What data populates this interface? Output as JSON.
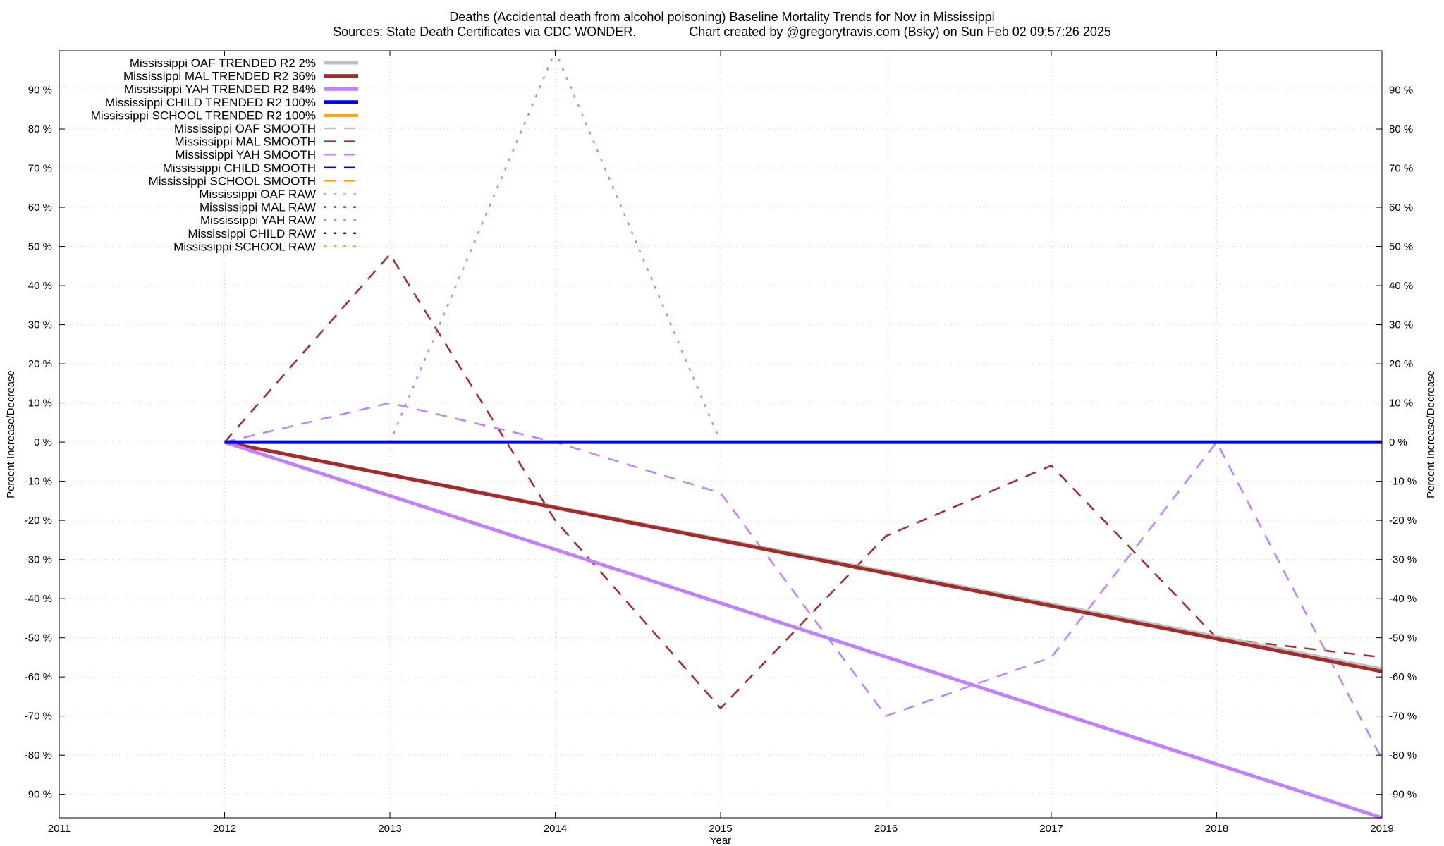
{
  "title": "Deaths (Accidental death from alcohol poisoning)  Baseline Mortality Trends for Nov in Mississippi",
  "subtitle": "Sources: State Death Certificates via CDC WONDER.               Chart created by @gregorytravis.com (Bsky) on Sun Feb 02 09:57:26 2025",
  "chart_data": {
    "type": "line",
    "xlabel": "Year",
    "ylabel": "Percent Increase/Decrease",
    "y2label": "Percent Increase/Decrease",
    "xlim": [
      2011,
      2019
    ],
    "ylim": [
      -96,
      100
    ],
    "x_ticks": [
      2011,
      2012,
      2013,
      2014,
      2015,
      2016,
      2017,
      2018,
      2019
    ],
    "y_ticks": [
      {
        "value": 90,
        "label": "90 %"
      },
      {
        "value": 80,
        "label": "80 %"
      },
      {
        "value": 70,
        "label": "70 %"
      },
      {
        "value": 60,
        "label": "60 %"
      },
      {
        "value": 50,
        "label": "50 %"
      },
      {
        "value": 40,
        "label": "40 %"
      },
      {
        "value": 30,
        "label": "30 %"
      },
      {
        "value": 20,
        "label": "20 %"
      },
      {
        "value": 10,
        "label": "10 %"
      },
      {
        "value": 0,
        "label": "0 %"
      },
      {
        "value": -10,
        "label": "-10 %"
      },
      {
        "value": -20,
        "label": "-20 %"
      },
      {
        "value": -30,
        "label": "-30 %"
      },
      {
        "value": -40,
        "label": "-40 %"
      },
      {
        "value": -50,
        "label": "-50 %"
      },
      {
        "value": -60,
        "label": "-60 %"
      },
      {
        "value": -70,
        "label": "-70 %"
      },
      {
        "value": -80,
        "label": "-80 %"
      },
      {
        "value": -90,
        "label": "-90 %"
      }
    ],
    "grid": true,
    "legend_position": "top-left",
    "series": [
      {
        "name": "Mississippi OAF TRENDED R2   2%",
        "style": "trend",
        "color": "#c0c0c0",
        "x": [
          2012,
          2019
        ],
        "y": [
          0,
          -58
        ]
      },
      {
        "name": "Mississippi MAL TRENDED R2  36%",
        "style": "trend",
        "color": "#a52a2a",
        "x": [
          2012,
          2019
        ],
        "y": [
          0,
          -58.6
        ]
      },
      {
        "name": "Mississippi YAH TRENDED R2  84%",
        "style": "trend",
        "color": "#c080ff",
        "x": [
          2012,
          2019
        ],
        "y": [
          0,
          -96
        ]
      },
      {
        "name": "Mississippi CHILD TRENDED R2 100%",
        "style": "trend",
        "color": "#0000ff",
        "x": [
          2012,
          2019
        ],
        "y": [
          0,
          0
        ]
      },
      {
        "name": "Mississippi SCHOOL TRENDED R2 100%",
        "style": "trend",
        "color": "#ffa500",
        "x": [],
        "y": []
      },
      {
        "name": "Mississippi OAF SMOOTH",
        "style": "smooth",
        "color": "#c0c0c0",
        "x": [],
        "y": []
      },
      {
        "name": "Mississippi MAL SMOOTH",
        "style": "smooth",
        "color": "#a52a2a",
        "x": [
          2012,
          2013,
          2014,
          2015,
          2016,
          2017,
          2018,
          2019
        ],
        "y": [
          0,
          48,
          -20,
          -68,
          -24,
          -6,
          -50,
          -55
        ]
      },
      {
        "name": "Mississippi YAH SMOOTH",
        "style": "smooth",
        "color": "#c080ff",
        "x": [
          2012,
          2013,
          2014,
          2015,
          2016,
          2017,
          2018,
          2019
        ],
        "y": [
          0,
          10,
          0,
          -13,
          -70,
          -55,
          0,
          -81
        ]
      },
      {
        "name": "Mississippi CHILD SMOOTH",
        "style": "smooth",
        "color": "#0000ff",
        "x": [],
        "y": []
      },
      {
        "name": "Mississippi SCHOOL SMOOTH",
        "style": "smooth",
        "color": "#ffa500",
        "x": [],
        "y": []
      },
      {
        "name": "Mississippi OAF RAW",
        "style": "raw",
        "color": "#c0c0c0",
        "x": [],
        "y": []
      },
      {
        "name": "Mississippi MAL RAW",
        "style": "raw",
        "color": "#a52a2a",
        "x": [],
        "y": []
      },
      {
        "name": "Mississippi YAH RAW",
        "style": "raw",
        "color": "#c080ff",
        "x": [
          2013,
          2014,
          2015
        ],
        "y": [
          0,
          100,
          0
        ]
      },
      {
        "name": "Mississippi CHILD RAW",
        "style": "raw",
        "color": "#0000ff",
        "x": [],
        "y": []
      },
      {
        "name": "Mississippi SCHOOL RAW",
        "style": "raw",
        "color": "#ffa500",
        "x": [],
        "y": []
      }
    ]
  }
}
